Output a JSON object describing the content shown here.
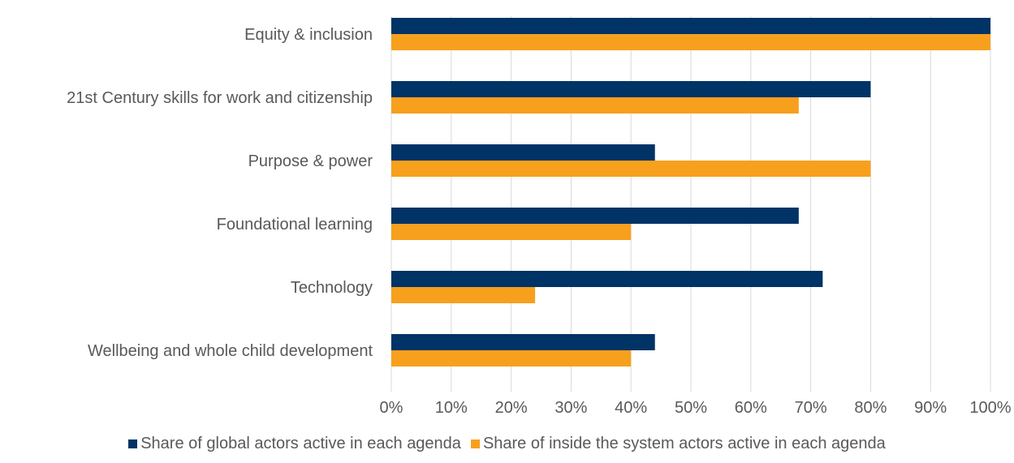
{
  "chart_data": {
    "type": "bar",
    "orientation": "horizontal",
    "categories": [
      "Equity & inclusion",
      "21st Century skills for work and citizenship",
      "Purpose & power",
      "Foundational learning",
      "Technology",
      "Wellbeing and whole child development"
    ],
    "series": [
      {
        "name": "Share of global actors active in each agenda",
        "color": "#003366",
        "values": [
          100,
          80,
          44,
          68,
          72,
          44
        ]
      },
      {
        "name": "Share of inside the system actors active in each agenda",
        "color": "#f7a01d",
        "values": [
          100,
          68,
          80,
          40,
          24,
          40
        ]
      }
    ],
    "xlim": [
      0,
      100
    ],
    "x_ticks": [
      "0%",
      "10%",
      "20%",
      "30%",
      "40%",
      "50%",
      "60%",
      "70%",
      "80%",
      "90%",
      "100%"
    ],
    "grid": "vertical",
    "legend_position": "bottom"
  }
}
